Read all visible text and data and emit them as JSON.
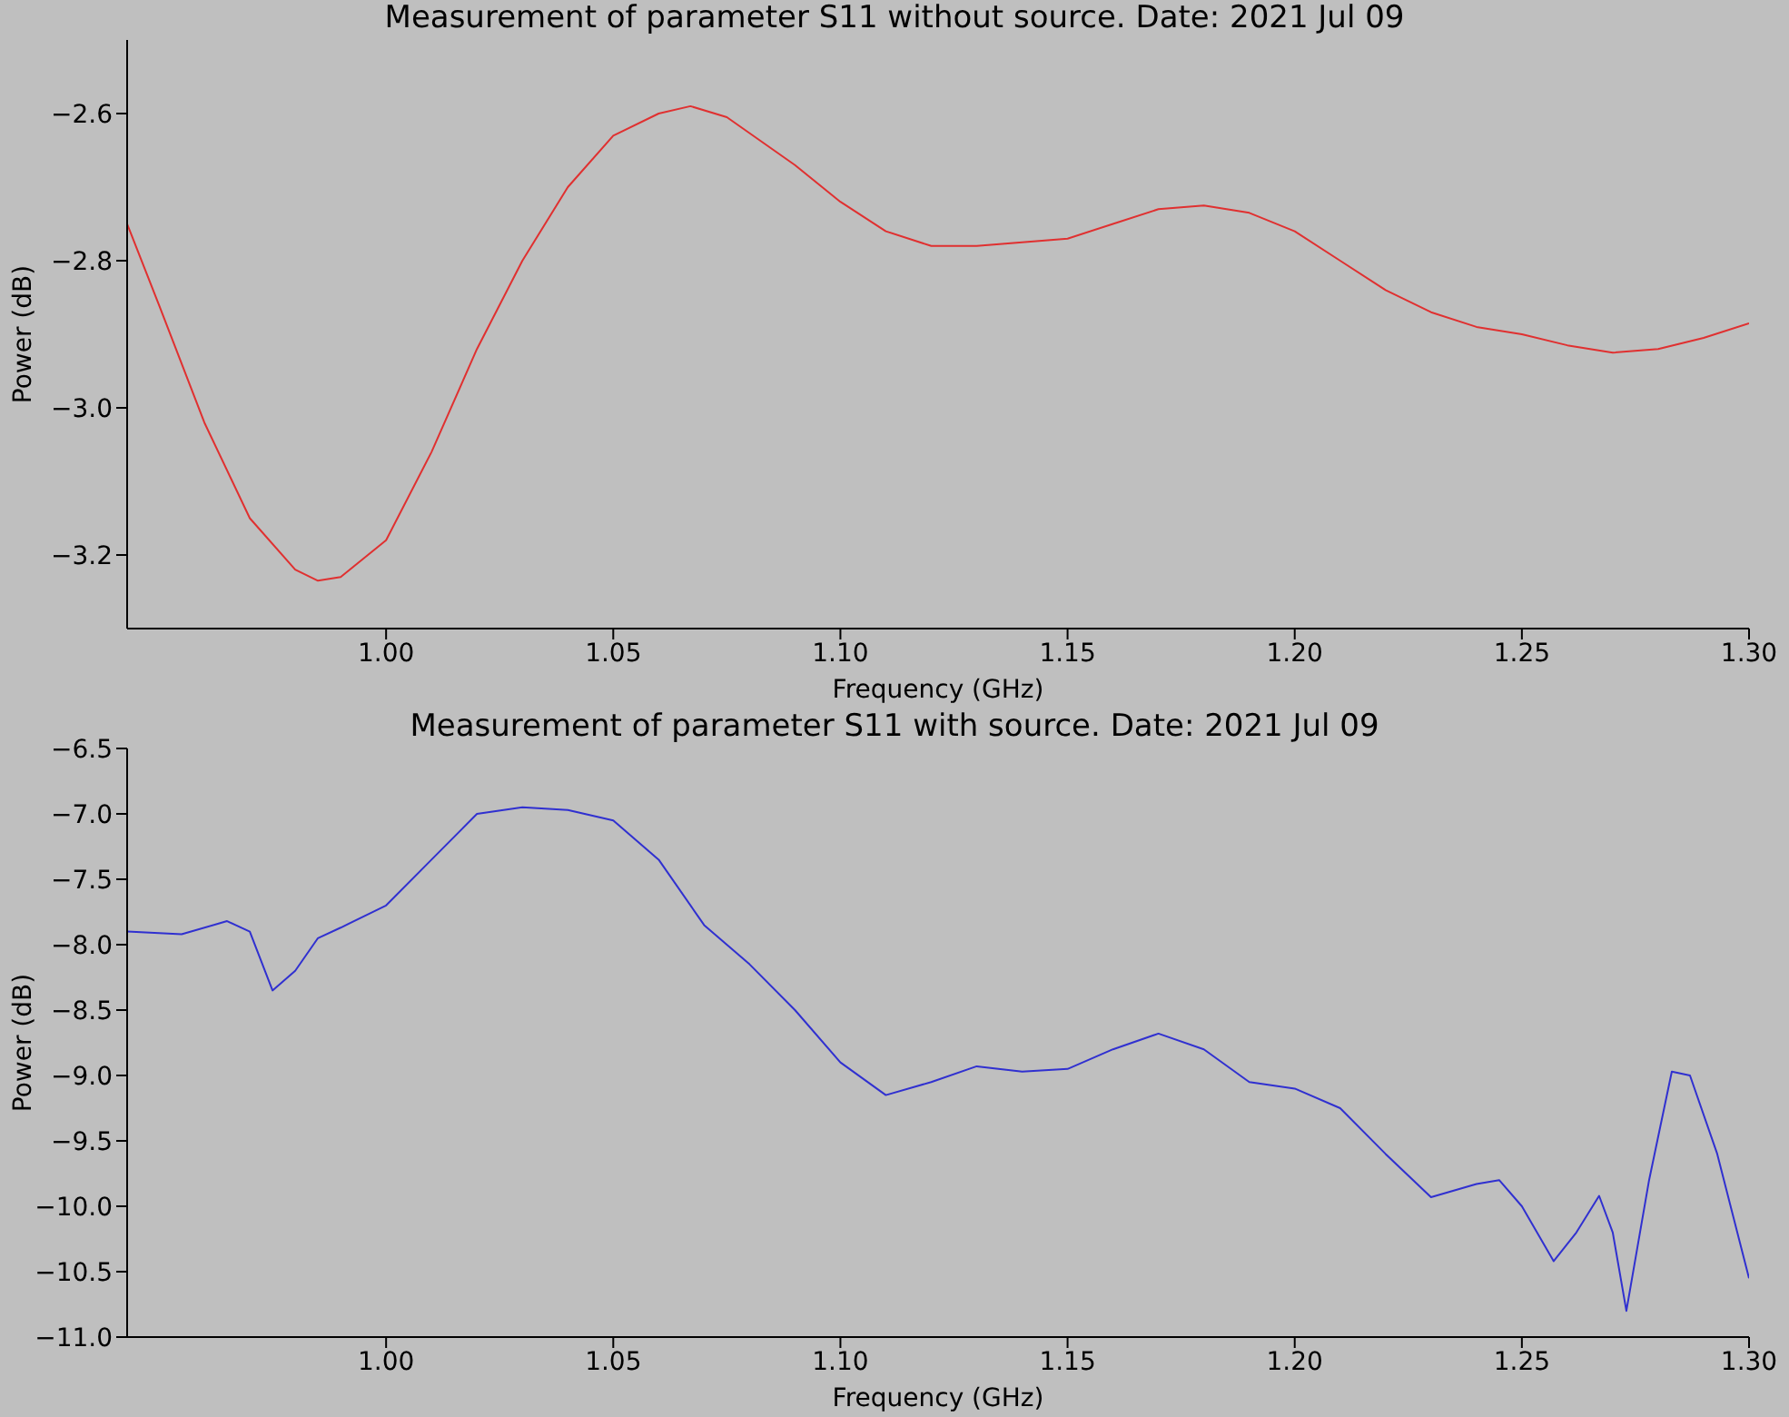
{
  "chart_data": [
    {
      "type": "line",
      "title": "Measurement of parameter S11 without source. Date: 2021 Jul 09",
      "xlabel": "Frequency (GHz)",
      "ylabel": "Power (dB)",
      "xlim": [
        0.943,
        1.3
      ],
      "xticks": [
        {
          "value": 1.0,
          "label": "1.00"
        },
        {
          "value": 1.05,
          "label": "1.05"
        },
        {
          "value": 1.1,
          "label": "1.10"
        },
        {
          "value": 1.15,
          "label": "1.15"
        },
        {
          "value": 1.2,
          "label": "1.20"
        },
        {
          "value": 1.25,
          "label": "1.25"
        },
        {
          "value": 1.3,
          "label": "1.30"
        }
      ],
      "ylim": [
        -3.3,
        -2.5
      ],
      "yticks": [
        {
          "value": -3.2,
          "label": "−3.2"
        },
        {
          "value": -3.0,
          "label": "−3.0"
        },
        {
          "value": -2.8,
          "label": "−2.8"
        },
        {
          "value": -2.6,
          "label": "−2.6"
        }
      ],
      "grid": false,
      "legend": false,
      "marker": "none",
      "line_style": "solid",
      "series": [
        {
          "color": "#e03030",
          "x": [
            0.943,
            0.95,
            0.96,
            0.97,
            0.98,
            0.985,
            0.99,
            1.0,
            1.01,
            1.02,
            1.03,
            1.04,
            1.05,
            1.06,
            1.067,
            1.075,
            1.09,
            1.1,
            1.11,
            1.12,
            1.13,
            1.14,
            1.15,
            1.16,
            1.17,
            1.18,
            1.19,
            1.2,
            1.21,
            1.22,
            1.23,
            1.24,
            1.25,
            1.26,
            1.27,
            1.28,
            1.29,
            1.3
          ],
          "values": [
            -2.75,
            -2.86,
            -3.02,
            -3.15,
            -3.22,
            -3.235,
            -3.23,
            -3.18,
            -3.06,
            -2.92,
            -2.8,
            -2.7,
            -2.63,
            -2.6,
            -2.59,
            -2.605,
            -2.67,
            -2.72,
            -2.76,
            -2.78,
            -2.78,
            -2.775,
            -2.77,
            -2.75,
            -2.73,
            -2.725,
            -2.735,
            -2.76,
            -2.8,
            -2.84,
            -2.87,
            -2.89,
            -2.9,
            -2.915,
            -2.925,
            -2.92,
            -2.905,
            -2.885
          ]
        }
      ]
    },
    {
      "type": "line",
      "title": "Measurement of parameter S11 with source. Date: 2021 Jul 09",
      "xlabel": "Frequency (GHz)",
      "ylabel": "Power (dB)",
      "xlim": [
        0.943,
        1.3
      ],
      "xticks": [
        {
          "value": 1.0,
          "label": "1.00"
        },
        {
          "value": 1.05,
          "label": "1.05"
        },
        {
          "value": 1.1,
          "label": "1.10"
        },
        {
          "value": 1.15,
          "label": "1.15"
        },
        {
          "value": 1.2,
          "label": "1.20"
        },
        {
          "value": 1.25,
          "label": "1.25"
        },
        {
          "value": 1.3,
          "label": "1.30"
        }
      ],
      "ylim": [
        -11.0,
        -6.5
      ],
      "yticks": [
        {
          "value": -11.0,
          "label": "−11.0"
        },
        {
          "value": -10.5,
          "label": "−10.5"
        },
        {
          "value": -10.0,
          "label": "−10.0"
        },
        {
          "value": -9.5,
          "label": "−9.5"
        },
        {
          "value": -9.0,
          "label": "−9.0"
        },
        {
          "value": -8.5,
          "label": "−8.5"
        },
        {
          "value": -8.0,
          "label": "−8.0"
        },
        {
          "value": -7.5,
          "label": "−7.5"
        },
        {
          "value": -7.0,
          "label": "−7.0"
        },
        {
          "value": -6.5,
          "label": "−6.5"
        }
      ],
      "grid": false,
      "legend": false,
      "marker": "none",
      "line_style": "solid",
      "series": [
        {
          "color": "#3030d0",
          "x": [
            0.943,
            0.955,
            0.965,
            0.97,
            0.975,
            0.98,
            0.985,
            0.99,
            1.0,
            1.01,
            1.02,
            1.03,
            1.04,
            1.05,
            1.06,
            1.07,
            1.08,
            1.09,
            1.1,
            1.11,
            1.12,
            1.13,
            1.14,
            1.15,
            1.16,
            1.17,
            1.18,
            1.19,
            1.2,
            1.21,
            1.22,
            1.23,
            1.24,
            1.245,
            1.25,
            1.257,
            1.262,
            1.267,
            1.27,
            1.273,
            1.278,
            1.283,
            1.287,
            1.293,
            1.3
          ],
          "values": [
            -7.9,
            -7.92,
            -7.82,
            -7.9,
            -8.35,
            -8.2,
            -7.95,
            -7.87,
            -7.7,
            -7.35,
            -7.0,
            -6.95,
            -6.97,
            -7.05,
            -7.35,
            -7.85,
            -8.15,
            -8.5,
            -8.9,
            -9.15,
            -9.05,
            -8.93,
            -8.97,
            -8.95,
            -8.8,
            -8.68,
            -8.8,
            -9.05,
            -9.1,
            -9.25,
            -9.6,
            -9.93,
            -9.83,
            -9.8,
            -10.0,
            -10.42,
            -10.2,
            -9.92,
            -10.2,
            -10.8,
            -9.8,
            -8.97,
            -9.0,
            -9.6,
            -10.55
          ]
        }
      ]
    }
  ]
}
